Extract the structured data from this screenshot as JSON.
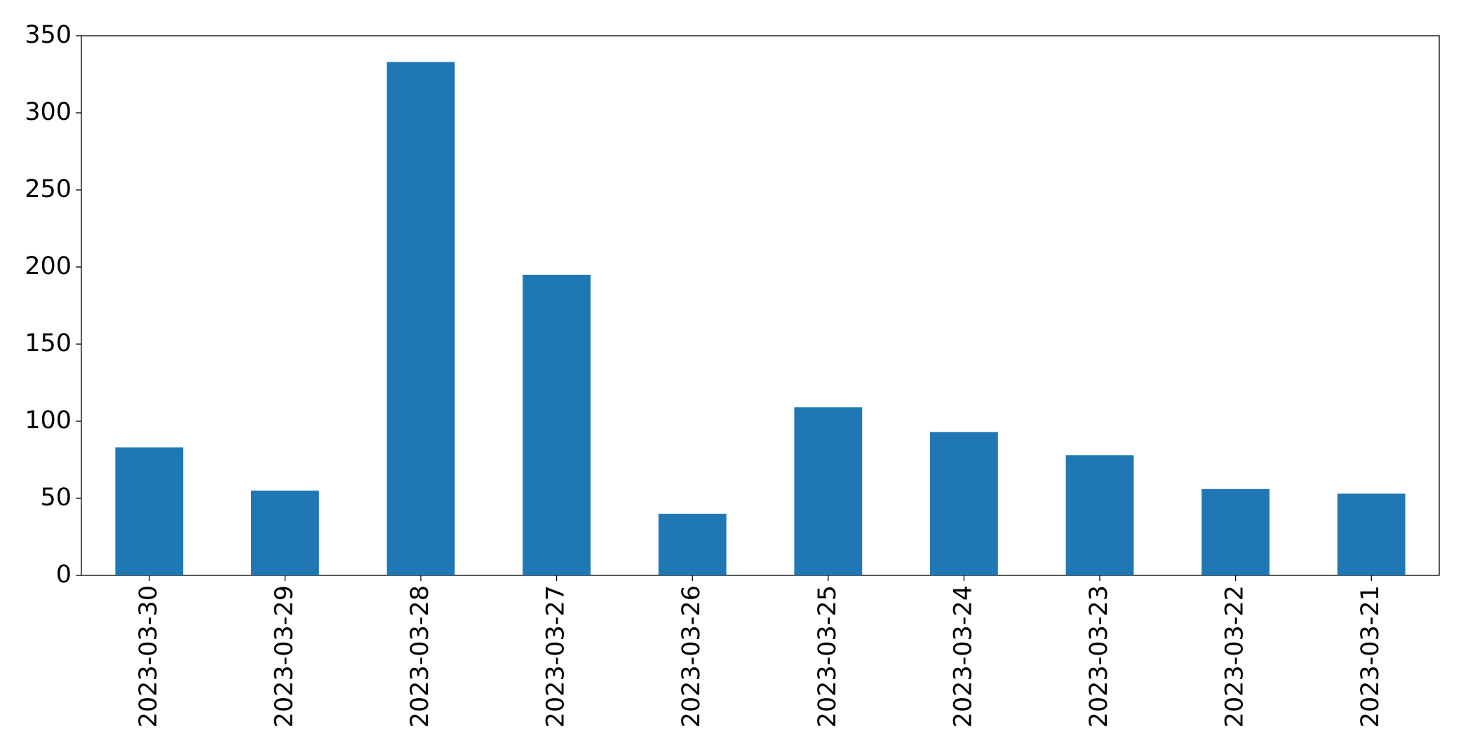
{
  "chart_data": {
    "type": "bar",
    "categories": [
      "2023-03-30",
      "2023-03-29",
      "2023-03-28",
      "2023-03-27",
      "2023-03-26",
      "2023-03-25",
      "2023-03-24",
      "2023-03-23",
      "2023-03-22",
      "2023-03-21"
    ],
    "values": [
      83,
      55,
      333,
      195,
      40,
      109,
      93,
      78,
      56,
      53
    ],
    "color": "#1f77b4",
    "ylim": [
      0,
      350
    ],
    "yticks": [
      0,
      50,
      100,
      150,
      200,
      250,
      300,
      350
    ],
    "grid": false
  }
}
